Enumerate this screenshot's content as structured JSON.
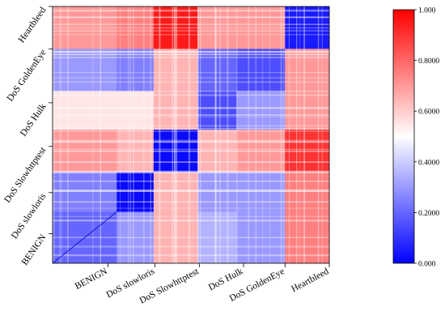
{
  "chart_data": {
    "type": "heatmap",
    "title": "",
    "xlabel": "",
    "ylabel": "",
    "categories_x": [
      "BENIGN",
      "DoS slowloris",
      "DoS Slowhttptest",
      "DoS Hulk",
      "DoS GoldenEye",
      "Heartbleed"
    ],
    "categories_y_top_to_bottom": [
      "Heartbleed",
      "DoS GoldenEye",
      "DoS Hulk",
      "DoS Slowhttptest",
      "DoS slowloris",
      "BENIGN"
    ],
    "block_values": [
      [
        0.7,
        0.75,
        0.95,
        0.7,
        0.7,
        0.05
      ],
      [
        0.3,
        0.25,
        0.65,
        0.2,
        0.15,
        0.7
      ],
      [
        0.55,
        0.55,
        0.65,
        0.15,
        0.3,
        0.7
      ],
      [
        0.7,
        0.65,
        0.02,
        0.65,
        0.7,
        0.9
      ],
      [
        0.25,
        0.02,
        0.65,
        0.3,
        0.3,
        0.75
      ],
      [
        0.2,
        0.3,
        0.65,
        0.35,
        0.3,
        0.75
      ]
    ],
    "zlim": [
      0,
      1
    ],
    "colorbar": {
      "ticks": [
        "0.000",
        "0.2000",
        "0.4000",
        "0.6000",
        "0.8000",
        "1.000"
      ],
      "tick_values": [
        0,
        0.2,
        0.4,
        0.6,
        0.8,
        1.0
      ],
      "colors": [
        "#0000ff",
        "#ffffff",
        "#ff0000"
      ]
    },
    "grid": false
  }
}
